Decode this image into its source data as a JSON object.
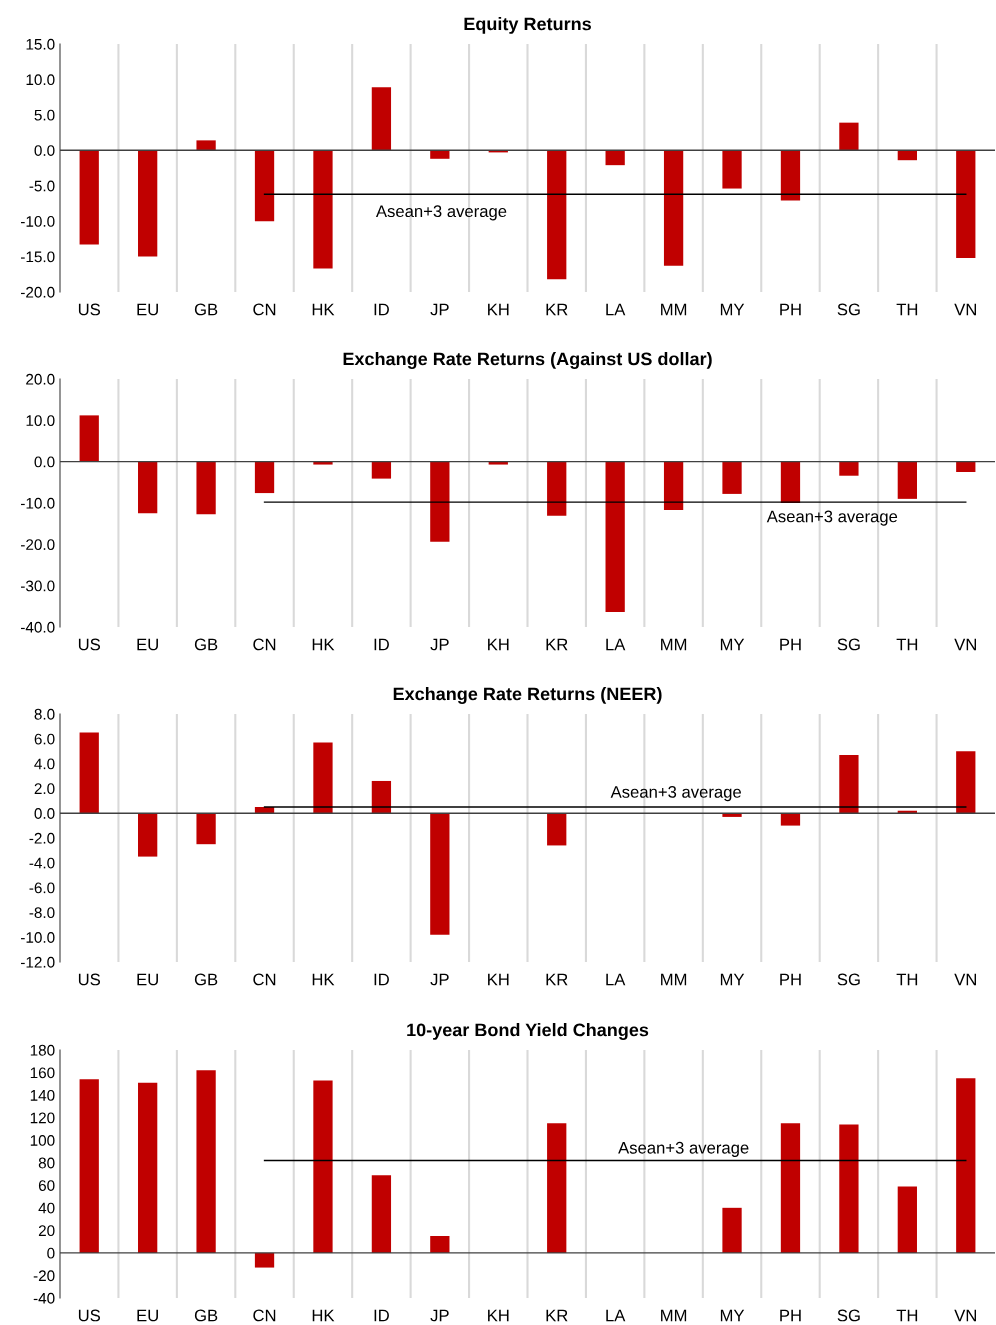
{
  "chart_data": [
    {
      "type": "bar",
      "title": "Equity Returns",
      "categories": [
        "US",
        "EU",
        "GB",
        "CN",
        "HK",
        "ID",
        "JP",
        "KH",
        "KR",
        "LA",
        "MM",
        "MY",
        "PH",
        "SG",
        "TH",
        "VN"
      ],
      "series": [
        {
          "color": "#c00000",
          "values": [
            -13.3,
            -15.0,
            1.4,
            -10.0,
            -16.7,
            8.9,
            -1.2,
            -0.3,
            -18.2,
            -2.1,
            -16.3,
            -5.4,
            -7.1,
            3.9,
            -1.4,
            -15.2
          ]
        },
        {
          "type": "line",
          "color": "#000000",
          "values": [
            null,
            null,
            null,
            -6.2,
            -6.2,
            -6.2,
            -6.2,
            -6.2,
            -6.2,
            -6.2,
            -6.2,
            -6.2,
            -6.2,
            -6.2,
            -6.2,
            -6.2
          ]
        }
      ],
      "annotations": [
        "Asean+3 average"
      ],
      "ylim": [
        -20,
        15
      ],
      "yticks": [
        {
          "value": -20,
          "label": "-20.0"
        },
        {
          "value": -15,
          "label": "-15.0"
        },
        {
          "value": -10,
          "label": "-10.0"
        },
        {
          "value": -5,
          "label": "-5.0"
        },
        {
          "value": 0,
          "label": "0.0"
        },
        {
          "value": 5,
          "label": "5.0"
        },
        {
          "value": 10,
          "label": "10.0"
        },
        {
          "value": 15,
          "label": "15.0"
        }
      ],
      "grid": "x",
      "legend": false
    },
    {
      "type": "bar",
      "title": "Exchange Rate Returns (Against US dollar)",
      "categories": [
        "US",
        "EU",
        "GB",
        "CN",
        "HK",
        "ID",
        "JP",
        "KH",
        "KR",
        "LA",
        "MM",
        "MY",
        "PH",
        "SG",
        "TH",
        "VN"
      ],
      "series": [
        {
          "color": "#c00000",
          "values": [
            11.2,
            -12.5,
            -12.7,
            -7.6,
            -0.7,
            -4.1,
            -19.4,
            -0.7,
            -13.1,
            -36.4,
            -11.7,
            -7.8,
            -10.0,
            -3.4,
            -9.0,
            -2.5
          ]
        },
        {
          "type": "line",
          "color": "#000000",
          "values": [
            null,
            null,
            null,
            -9.8,
            -9.8,
            -9.8,
            -9.8,
            -9.8,
            -9.8,
            -9.8,
            -9.8,
            -9.8,
            -9.8,
            -9.8,
            -9.8,
            -9.8
          ]
        }
      ],
      "annotations": [
        "Asean+3 average"
      ],
      "ylim": [
        -40,
        20
      ],
      "yticks": [
        {
          "value": -40,
          "label": "-40.0"
        },
        {
          "value": -30,
          "label": "-30.0"
        },
        {
          "value": -20,
          "label": "-20.0"
        },
        {
          "value": -10,
          "label": "-10.0"
        },
        {
          "value": 0,
          "label": "0.0"
        },
        {
          "value": 10,
          "label": "10.0"
        },
        {
          "value": 20,
          "label": "20.0"
        }
      ],
      "grid": "x",
      "legend": false
    },
    {
      "type": "bar",
      "title": "Exchange Rate Returns (NEER)",
      "categories": [
        "US",
        "EU",
        "GB",
        "CN",
        "HK",
        "ID",
        "JP",
        "KH",
        "KR",
        "LA",
        "MM",
        "MY",
        "PH",
        "SG",
        "TH",
        "VN"
      ],
      "series": [
        {
          "color": "#c00000",
          "values": [
            6.5,
            -3.5,
            -2.5,
            0.5,
            5.7,
            2.6,
            -9.8,
            null,
            -2.6,
            null,
            null,
            -0.3,
            -1.0,
            4.7,
            0.2,
            5.0
          ]
        },
        {
          "type": "line",
          "color": "#000000",
          "values": [
            null,
            null,
            null,
            0.5,
            0.5,
            0.5,
            0.5,
            0.5,
            0.5,
            0.5,
            0.5,
            0.5,
            0.5,
            0.5,
            0.5,
            0.5
          ]
        }
      ],
      "annotations": [
        "Asean+3 average"
      ],
      "ylim": [
        -12,
        8
      ],
      "yticks": [
        {
          "value": -12,
          "label": "-12.0"
        },
        {
          "value": -10,
          "label": "-10.0"
        },
        {
          "value": -8,
          "label": "-8.0"
        },
        {
          "value": -6,
          "label": "-6.0"
        },
        {
          "value": -4,
          "label": "-4.0"
        },
        {
          "value": -2,
          "label": "-2.0"
        },
        {
          "value": 0,
          "label": "0.0"
        },
        {
          "value": 2,
          "label": "2.0"
        },
        {
          "value": 4,
          "label": "4.0"
        },
        {
          "value": 6,
          "label": "6.0"
        },
        {
          "value": 8,
          "label": "8.0"
        }
      ],
      "grid": "x",
      "legend": false
    },
    {
      "type": "bar",
      "title": "10-year Bond Yield Changes",
      "categories": [
        "US",
        "EU",
        "GB",
        "CN",
        "HK",
        "ID",
        "JP",
        "KH",
        "KR",
        "LA",
        "MM",
        "MY",
        "PH",
        "SG",
        "TH",
        "VN"
      ],
      "series": [
        {
          "color": "#c00000",
          "values": [
            154,
            151,
            162,
            -13,
            153,
            69,
            15,
            null,
            115,
            null,
            null,
            40,
            115,
            114,
            59,
            155
          ]
        },
        {
          "type": "line",
          "color": "#000000",
          "values": [
            null,
            null,
            null,
            82,
            82,
            82,
            82,
            82,
            82,
            82,
            82,
            82,
            82,
            82,
            82,
            82
          ]
        }
      ],
      "annotations": [
        "Asean+3 average"
      ],
      "ylim": [
        -40,
        180
      ],
      "yticks": [
        -40,
        -20,
        0,
        20,
        40,
        60,
        80,
        100,
        120,
        140,
        160,
        180
      ],
      "grid": "x",
      "legend": false
    }
  ]
}
